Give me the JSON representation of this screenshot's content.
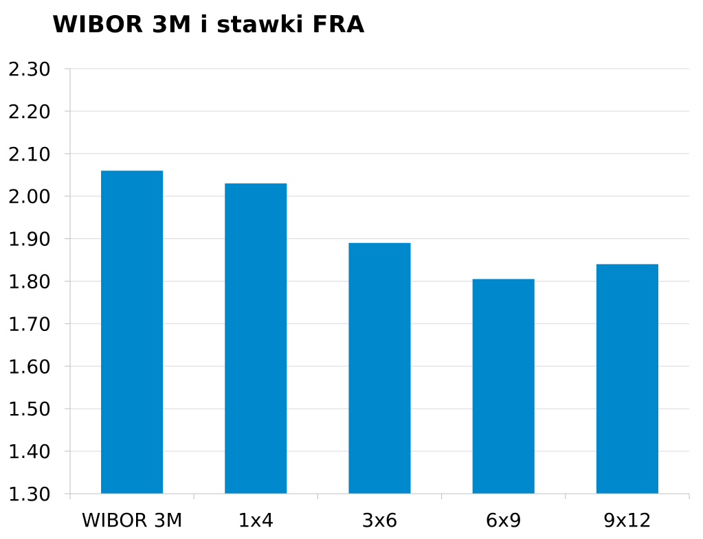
{
  "chart_data": {
    "type": "bar",
    "title": "WIBOR 3M i stawki FRA",
    "xlabel": "",
    "ylabel": "",
    "categories": [
      "WIBOR 3M",
      "1x4",
      "3x6",
      "6x9",
      "9x12"
    ],
    "values": [
      2.06,
      2.03,
      1.89,
      1.805,
      1.84
    ],
    "ylim": [
      1.3,
      2.3
    ],
    "yticks": [
      "1.30",
      "1.40",
      "1.50",
      "1.60",
      "1.70",
      "1.80",
      "1.90",
      "2.00",
      "2.10",
      "2.20",
      "2.30"
    ],
    "grid": true,
    "legend": "none",
    "colors": {
      "bar": "#0088CC",
      "grid": "#D9D9D9",
      "axis": "#BFBFBF"
    }
  }
}
